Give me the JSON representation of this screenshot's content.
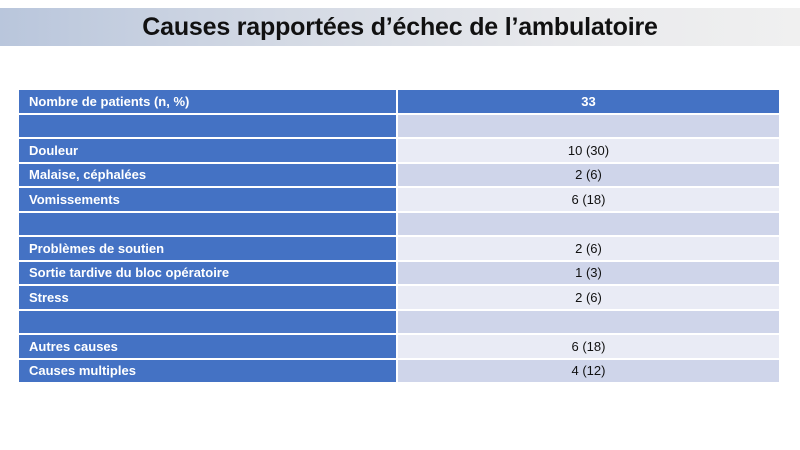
{
  "title": "Causes rapportées d’échec de l’ambulatoire",
  "table": {
    "header": {
      "label": "Nombre de patients (n, %)",
      "value": "33"
    },
    "rows": [
      {
        "label": "",
        "value": ""
      },
      {
        "label": "Douleur",
        "value": "10 (30)"
      },
      {
        "label": "Malaise, céphalées",
        "value": "2 (6)"
      },
      {
        "label": "Vomissements",
        "value": "6 (18)"
      },
      {
        "label": "",
        "value": ""
      },
      {
        "label": "Problèmes de soutien",
        "value": "2 (6)"
      },
      {
        "label": "Sortie tardive du bloc opératoire",
        "value": "1 (3)"
      },
      {
        "label": "Stress",
        "value": "2 (6)"
      },
      {
        "label": "",
        "value": ""
      },
      {
        "label": "Autres causes",
        "value": "6 (18)"
      },
      {
        "label": "Causes multiples",
        "value": "4 (12)"
      }
    ]
  },
  "colors": {
    "header_blue": "#4472c4",
    "row_dark": "#cfd5ea",
    "row_light": "#e9ebf5"
  }
}
